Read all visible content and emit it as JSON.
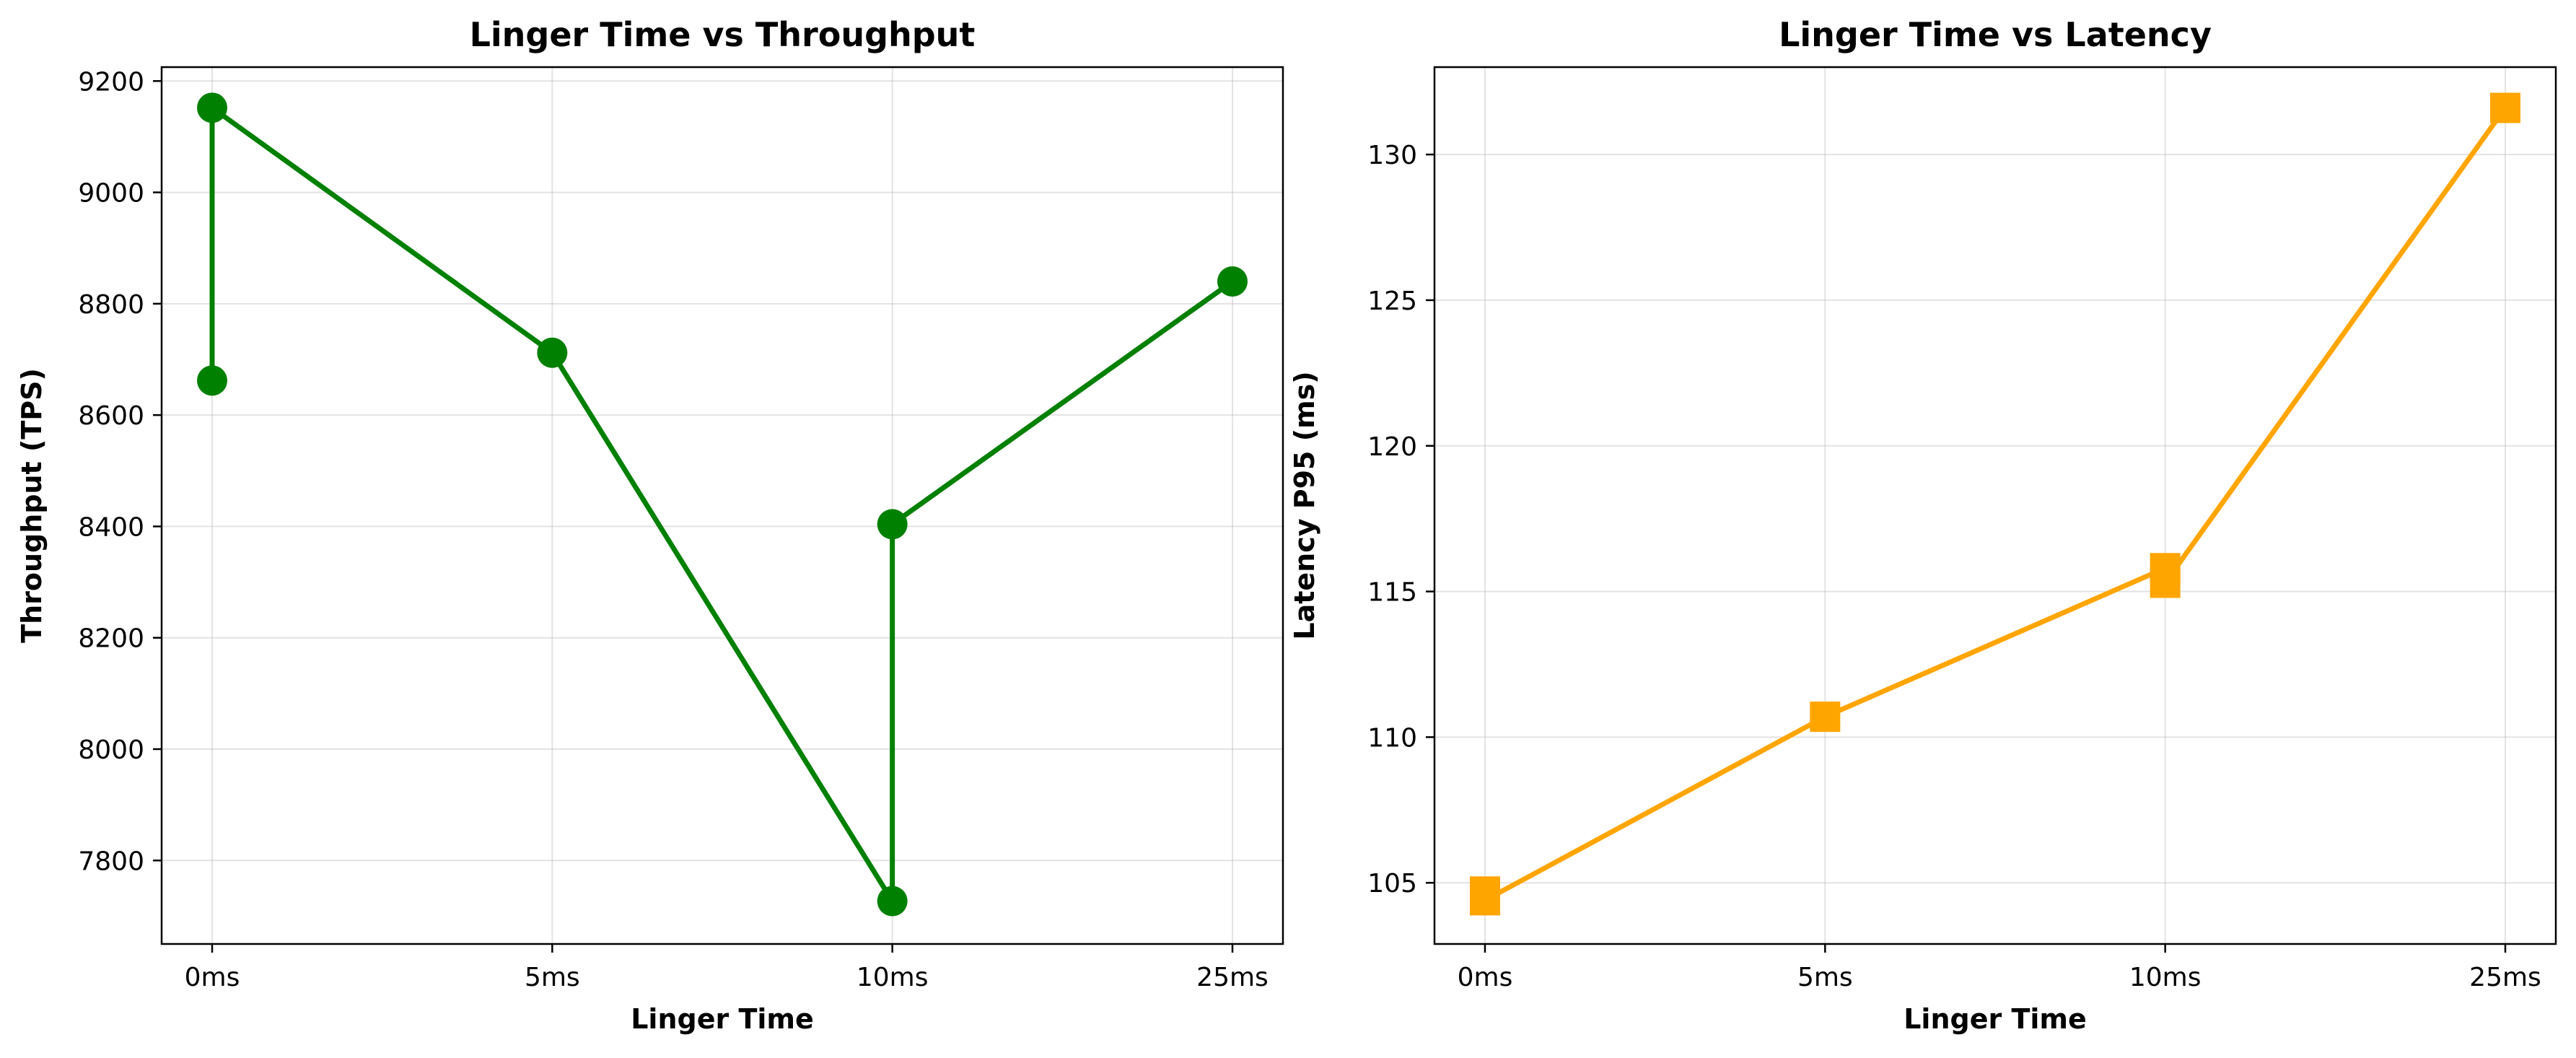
{
  "chart_data": [
    {
      "type": "line",
      "title": "Linger Time vs Throughput",
      "xlabel": "Linger Time",
      "ylabel": "Throughput (TPS)",
      "categories": [
        "0ms",
        "5ms",
        "10ms",
        "25ms"
      ],
      "yticks": [
        "7800",
        "8000",
        "8200",
        "8400",
        "8600",
        "8800",
        "9000",
        "9200"
      ],
      "ylim": [
        7650,
        9225
      ],
      "grid": true,
      "marker": "circle",
      "color": "#008000",
      "series": [
        {
          "points": [
            {
              "x": "0ms",
              "y": 8662
            },
            {
              "x": "0ms",
              "y": 9152
            },
            {
              "x": "5ms",
              "y": 8712
            },
            {
              "x": "10ms",
              "y": 7727
            },
            {
              "x": "10ms",
              "y": 8404
            },
            {
              "x": "25ms",
              "y": 8840
            }
          ]
        }
      ]
    },
    {
      "type": "line",
      "title": "Linger Time vs Latency",
      "xlabel": "Linger Time",
      "ylabel": "Latency P95 (ms)",
      "categories": [
        "0ms",
        "5ms",
        "10ms",
        "25ms"
      ],
      "yticks": [
        "105",
        "110",
        "115",
        "120",
        "125",
        "130"
      ],
      "ylim": [
        102.9,
        133.0
      ],
      "grid": true,
      "marker": "square",
      "color": "#FFA500",
      "series": [
        {
          "points": [
            {
              "x": "0ms",
              "y": 104.7
            },
            {
              "x": "0ms",
              "y": 104.4
            },
            {
              "x": "5ms",
              "y": 110.7
            },
            {
              "x": "10ms",
              "y": 115.8
            },
            {
              "x": "10ms",
              "y": 115.3
            },
            {
              "x": "25ms",
              "y": 131.6
            }
          ]
        }
      ]
    }
  ]
}
